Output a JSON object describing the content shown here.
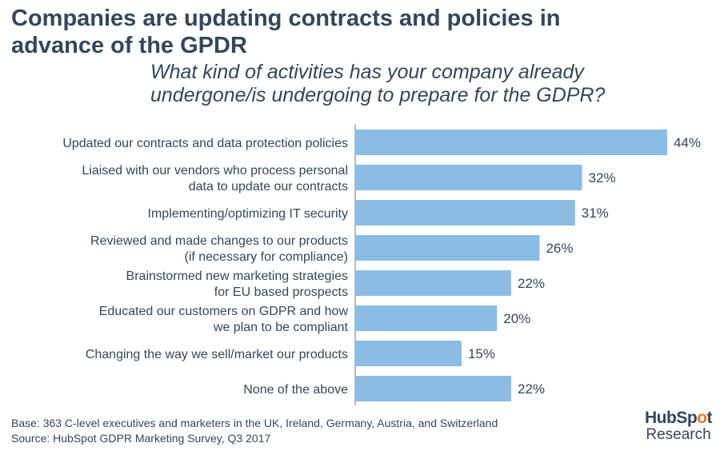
{
  "title": "Companies are updating contracts and policies in advance of the GPDR",
  "subtitle_lines": [
    "What kind of activities has your company already",
    "undergone/is undergoing to prepare for the GDPR?"
  ],
  "footer": {
    "base": "Base: 363 C-level executives and marketers in the UK, Ireland, Germany, Austria, and Switzerland",
    "source": "Source: HubSpot GDPR Marketing Survey, Q3 2017"
  },
  "brand": {
    "logo_pre": "HubSp",
    "logo_o": "o",
    "logo_post": "t",
    "sub": "Research"
  },
  "colors": {
    "bar": "#8bbde4",
    "axis": "#9aa5b1",
    "text": "#33475b",
    "accent": "#f47622"
  },
  "chart_data": {
    "type": "bar",
    "orientation": "horizontal",
    "categories": [
      [
        "Updated our contracts and data protection policies"
      ],
      [
        "Liaised with our vendors who process personal",
        "data to update our contracts"
      ],
      [
        "Implementing/optimizing IT security"
      ],
      [
        "Reviewed and made changes to our products",
        "(if necessary for compliance)"
      ],
      [
        "Brainstormed new marketing strategies",
        "for EU based prospects"
      ],
      [
        "Educated our customers on GDPR and how",
        "we plan to be compliant"
      ],
      [
        "Changing the way we sell/market our products"
      ],
      [
        "None of the above"
      ]
    ],
    "values": [
      44,
      32,
      31,
      26,
      22,
      20,
      15,
      22
    ],
    "value_labels": [
      "44%",
      "32%",
      "31%",
      "26%",
      "22%",
      "20%",
      "15%",
      "22%"
    ],
    "xlim": [
      0,
      44
    ]
  }
}
